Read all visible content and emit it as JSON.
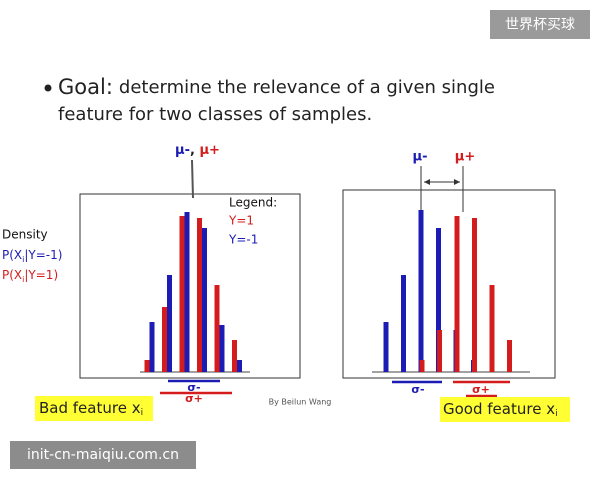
{
  "watermark": "世界杯买球",
  "bullet": {
    "lead": "Goal:",
    "line1": "determine the relevance of a given single",
    "line2": "feature for two classes of samples."
  },
  "density": {
    "title": "Density",
    "neg": [
      "P(X",
      "i",
      "|Y=-1)"
    ],
    "pos": [
      "P(X",
      "i",
      "|Y=1)"
    ]
  },
  "legend": {
    "title": "Legend:",
    "pos": "Y=1",
    "neg": "Y=-1"
  },
  "panels": [
    {
      "mu": [
        "μ-",
        ", ",
        "μ+"
      ],
      "sigma_minus": "σ-",
      "sigma_plus": "σ+",
      "caption": [
        "Bad feature x",
        "i"
      ],
      "bars": {
        "neg": [
          5,
          9.7,
          16,
          14.4,
          4.7,
          1.2
        ],
        "pos": [
          1.2,
          6.5,
          15.6,
          15.4,
          8.7,
          3.2
        ]
      }
    },
    {
      "mu": [
        "μ-",
        "μ+"
      ],
      "sigma_minus": "σ-",
      "sigma_plus": "σ+",
      "caption": [
        "Good feature x",
        "i"
      ],
      "bars": {
        "neg": [
          5,
          9.7,
          16.2,
          14.4,
          4.2,
          1.2
        ],
        "pos": [
          1.2,
          4.2,
          15.6,
          15.4,
          8.7,
          3.2
        ]
      }
    }
  ],
  "credit": "By Beilun Wang",
  "footer": "init-cn-maiqiu.com.cn"
}
